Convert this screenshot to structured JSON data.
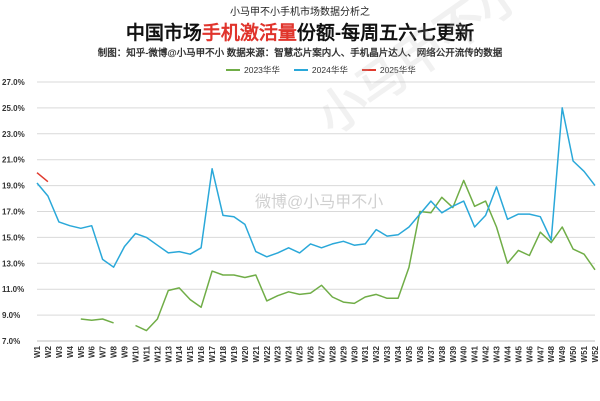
{
  "header": {
    "top_caption": "小马甲不小手机市场数据分析之",
    "title_pre": "中国市场",
    "title_highlight": "手机激活量",
    "title_post": "份额-每周五六七更新",
    "credit": "制图：知乎-微博@小马甲不小   数据来源：智慧芯片案内人、手机晶片达人、网络公开流传的数据"
  },
  "watermark": {
    "small": "微博@小马甲不小",
    "big": "小马甲不小"
  },
  "colors": {
    "series_2023": "#70ad47",
    "series_2024": "#2aa8d9",
    "series_2025": "#e03a2e",
    "grid": "#d9d9d9"
  },
  "chart_data": {
    "type": "line",
    "title": "中国市场手机激活量份额-每周五六七更新",
    "xlabel": "",
    "ylabel": "",
    "ylim": [
      7.0,
      27.0
    ],
    "y_ticks": [
      "7.0%",
      "9.0%",
      "11.0%",
      "13.0%",
      "15.0%",
      "17.0%",
      "19.0%",
      "21.0%",
      "23.0%",
      "25.0%",
      "27.0%"
    ],
    "grid": "horizontal",
    "legend_position": "top",
    "categories": [
      "W1",
      "W2",
      "W3",
      "W4",
      "W5",
      "W6",
      "W7",
      "W8",
      "W9",
      "W10",
      "W11",
      "W12",
      "W13",
      "W14",
      "W15",
      "W16",
      "W17",
      "W18",
      "W19",
      "W20",
      "W21",
      "W22",
      "W23",
      "W24",
      "W25",
      "W26",
      "W27",
      "W28",
      "W29",
      "W30",
      "W31",
      "W32",
      "W33",
      "W34",
      "W35",
      "W36",
      "W37",
      "W38",
      "W39",
      "W40",
      "W41",
      "W42",
      "W43",
      "W44",
      "W45",
      "W46",
      "W47",
      "W48",
      "W49",
      "W50",
      "W51",
      "W52"
    ],
    "series": [
      {
        "name": "2023华华",
        "color": "#70ad47",
        "values": [
          null,
          null,
          null,
          null,
          8.7,
          8.6,
          8.7,
          8.4,
          null,
          8.2,
          7.8,
          8.7,
          10.9,
          11.1,
          10.2,
          9.6,
          12.4,
          12.1,
          12.1,
          11.9,
          12.1,
          10.1,
          10.5,
          10.8,
          10.6,
          10.7,
          11.3,
          10.4,
          10.0,
          9.9,
          10.4,
          10.6,
          10.3,
          10.3,
          12.7,
          17.0,
          16.9,
          18.1,
          17.3,
          19.4,
          17.4,
          17.8,
          15.8,
          13.0,
          14.0,
          13.6,
          15.4,
          14.6,
          15.8,
          14.1,
          13.7,
          12.5
        ]
      },
      {
        "name": "2024华华",
        "color": "#2aa8d9",
        "values": [
          19.2,
          18.2,
          16.2,
          15.9,
          15.7,
          15.9,
          13.3,
          12.7,
          14.3,
          15.3,
          15.0,
          14.4,
          13.8,
          13.9,
          13.7,
          14.2,
          20.3,
          16.7,
          16.6,
          16.0,
          13.9,
          13.5,
          13.8,
          14.2,
          13.8,
          14.5,
          14.2,
          14.5,
          14.7,
          14.4,
          14.5,
          15.6,
          15.1,
          15.2,
          15.8,
          16.8,
          17.8,
          16.9,
          17.4,
          17.8,
          15.8,
          16.7,
          18.9,
          16.4,
          16.8,
          16.8,
          16.6,
          14.8,
          25.0,
          20.9,
          20.1,
          19.0
        ]
      },
      {
        "name": "2025华华",
        "color": "#e03a2e",
        "values": [
          20.0,
          19.3,
          null,
          null,
          null,
          null,
          null,
          null,
          null,
          null,
          null,
          null,
          null,
          null,
          null,
          null,
          null,
          null,
          null,
          null,
          null,
          null,
          null,
          null,
          null,
          null,
          null,
          null,
          null,
          null,
          null,
          null,
          null,
          null,
          null,
          null,
          null,
          null,
          null,
          null,
          null,
          null,
          null,
          null,
          null,
          null,
          null,
          null,
          null,
          null,
          null,
          null
        ]
      }
    ]
  }
}
